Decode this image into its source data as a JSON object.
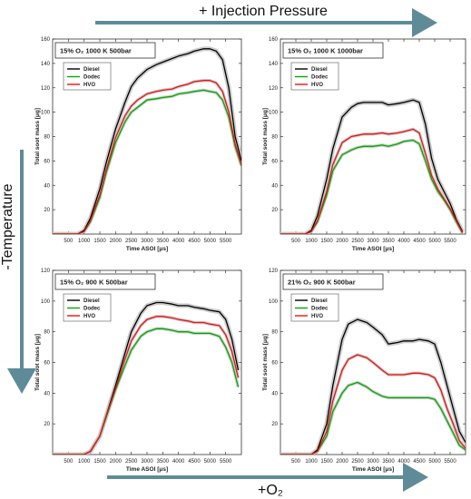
{
  "figure": {
    "top_label": "+ Injection Pressure",
    "left_label": "-Temperature",
    "bottom_label": "+O₂",
    "arrow_color": "#5f8b98"
  },
  "colors": {
    "Diesel": "#000000",
    "Dodec": "#00aa00",
    "HVO": "#ee1111",
    "band": "#c8c8c8"
  },
  "chart_data": [
    {
      "type": "line",
      "title": "15% O₂ 1000 K 500bar",
      "xlabel": "Time ASOI [μs]",
      "ylabel": "Total soot mass [μg]",
      "xlim": [
        0,
        6000
      ],
      "ylim": [
        0,
        160
      ],
      "xticks": [
        500,
        1000,
        1500,
        2000,
        2500,
        3000,
        3500,
        4000,
        4500,
        5000,
        5500
      ],
      "yticks": [
        20,
        40,
        60,
        80,
        100,
        120,
        140,
        160
      ],
      "legend": "top-left-inset",
      "x": [
        0,
        800,
        1000,
        1200,
        1500,
        1700,
        2000,
        2300,
        2500,
        2700,
        3000,
        3300,
        3500,
        3800,
        4000,
        4300,
        4500,
        4800,
        5000,
        5200,
        5400,
        5600,
        5800,
        6000
      ],
      "series": [
        {
          "name": "Diesel",
          "values": [
            0,
            0,
            3,
            13,
            37,
            58,
            86,
            108,
            121,
            128,
            135,
            139,
            141,
            144,
            146,
            148,
            150,
            152,
            152,
            150,
            143,
            120,
            80,
            60
          ]
        },
        {
          "name": "Dodec",
          "values": [
            0,
            0,
            2,
            10,
            30,
            50,
            75,
            92,
            100,
            104,
            110,
            111,
            112,
            113,
            115,
            116,
            117,
            118,
            117,
            116,
            110,
            96,
            72,
            56
          ]
        },
        {
          "name": "HVO",
          "values": [
            0,
            0,
            2,
            11,
            32,
            52,
            79,
            97,
            105,
            110,
            115,
            117,
            118,
            119,
            121,
            123,
            125,
            126,
            126,
            124,
            117,
            100,
            74,
            57
          ]
        }
      ]
    },
    {
      "type": "line",
      "title": "15% O₂ 1000 K 1000bar",
      "xlabel": "Time ASOI [μs]",
      "ylabel": "Total soot mass [μg]",
      "xlim": [
        0,
        6000
      ],
      "ylim": [
        0,
        160
      ],
      "xticks": [
        500,
        1000,
        1500,
        2000,
        2500,
        3000,
        3500,
        4000,
        4500,
        5000,
        5500
      ],
      "yticks": [
        20,
        40,
        60,
        80,
        100,
        120,
        140,
        160
      ],
      "legend": "top-left-inset",
      "x": [
        0,
        800,
        1000,
        1200,
        1500,
        1700,
        2000,
        2300,
        2500,
        2700,
        3000,
        3300,
        3500,
        3800,
        4000,
        4300,
        4500,
        4700,
        4900,
        5100,
        5300,
        5500,
        5700,
        5900
      ],
      "series": [
        {
          "name": "Diesel",
          "values": [
            0,
            0,
            3,
            15,
            45,
            70,
            96,
            104,
            107,
            108,
            108,
            108,
            106,
            107,
            108,
            110,
            108,
            90,
            62,
            45,
            35,
            25,
            12,
            2
          ]
        },
        {
          "name": "Dodec",
          "values": [
            0,
            0,
            2,
            10,
            32,
            52,
            65,
            69,
            71,
            72,
            72,
            73,
            72,
            74,
            76,
            77,
            74,
            60,
            45,
            35,
            28,
            20,
            10,
            1
          ]
        },
        {
          "name": "HVO",
          "values": [
            0,
            0,
            2,
            11,
            35,
            57,
            75,
            80,
            81,
            82,
            82,
            83,
            82,
            83,
            84,
            86,
            83,
            66,
            48,
            37,
            29,
            21,
            11,
            1
          ]
        }
      ]
    },
    {
      "type": "line",
      "title": "15% O₂ 900 K 500bar",
      "xlabel": "Time ASOI [μs]",
      "ylabel": "Total soot mass [μg]",
      "xlim": [
        0,
        6000
      ],
      "ylim": [
        0,
        120
      ],
      "xticks": [
        500,
        1000,
        1500,
        2000,
        2500,
        3000,
        3500,
        4000,
        4500,
        5000,
        5500
      ],
      "yticks": [
        20,
        40,
        60,
        80,
        100,
        120
      ],
      "legend": "top-left-inset",
      "x": [
        0,
        1000,
        1200,
        1500,
        1700,
        2000,
        2300,
        2500,
        2800,
        3000,
        3300,
        3500,
        3800,
        4000,
        4300,
        4500,
        4800,
        5000,
        5300,
        5500,
        5700,
        5900
      ],
      "series": [
        {
          "name": "Diesel",
          "values": [
            0,
            0,
            2,
            12,
            25,
            45,
            66,
            80,
            92,
            97,
            99,
            99,
            98,
            97,
            97,
            96,
            95,
            94,
            93,
            88,
            75,
            55
          ]
        },
        {
          "name": "Dodec",
          "values": [
            0,
            0,
            2,
            12,
            24,
            42,
            58,
            68,
            77,
            80,
            82,
            82,
            81,
            80,
            80,
            79,
            79,
            79,
            77,
            70,
            60,
            44
          ]
        },
        {
          "name": "HVO",
          "values": [
            0,
            0,
            2,
            12,
            25,
            43,
            62,
            74,
            84,
            88,
            90,
            90,
            89,
            88,
            87,
            86,
            86,
            85,
            84,
            78,
            67,
            50
          ]
        }
      ]
    },
    {
      "type": "line",
      "title": "21% O₂ 900 K 500bar",
      "xlabel": "Time ASOI [μs]",
      "ylabel": "Total soot mass [μg]",
      "xlim": [
        0,
        6000
      ],
      "ylim": [
        0,
        120
      ],
      "xticks": [
        500,
        1000,
        1500,
        2000,
        2500,
        3000,
        3500,
        4000,
        4500,
        5000,
        5500
      ],
      "yticks": [
        20,
        40,
        60,
        80,
        100,
        120
      ],
      "legend": "top-left-inset",
      "x": [
        0,
        1000,
        1200,
        1500,
        1700,
        2000,
        2200,
        2500,
        2800,
        3000,
        3300,
        3500,
        3800,
        4000,
        4300,
        4500,
        4800,
        5000,
        5200,
        5400,
        5600,
        5800,
        6000
      ],
      "series": [
        {
          "name": "Diesel",
          "values": [
            0,
            0,
            3,
            20,
            45,
            75,
            85,
            88,
            86,
            83,
            78,
            72,
            73,
            74,
            74,
            75,
            74,
            72,
            60,
            45,
            30,
            15,
            8
          ]
        },
        {
          "name": "Dodec",
          "values": [
            0,
            0,
            2,
            12,
            28,
            40,
            45,
            47,
            44,
            41,
            38,
            37,
            37,
            37,
            37,
            37,
            37,
            36,
            30,
            22,
            14,
            6,
            3
          ]
        },
        {
          "name": "HVO",
          "values": [
            0,
            0,
            2,
            15,
            35,
            55,
            62,
            65,
            63,
            60,
            55,
            52,
            52,
            52,
            53,
            53,
            52,
            50,
            42,
            30,
            20,
            9,
            4
          ]
        }
      ]
    }
  ]
}
